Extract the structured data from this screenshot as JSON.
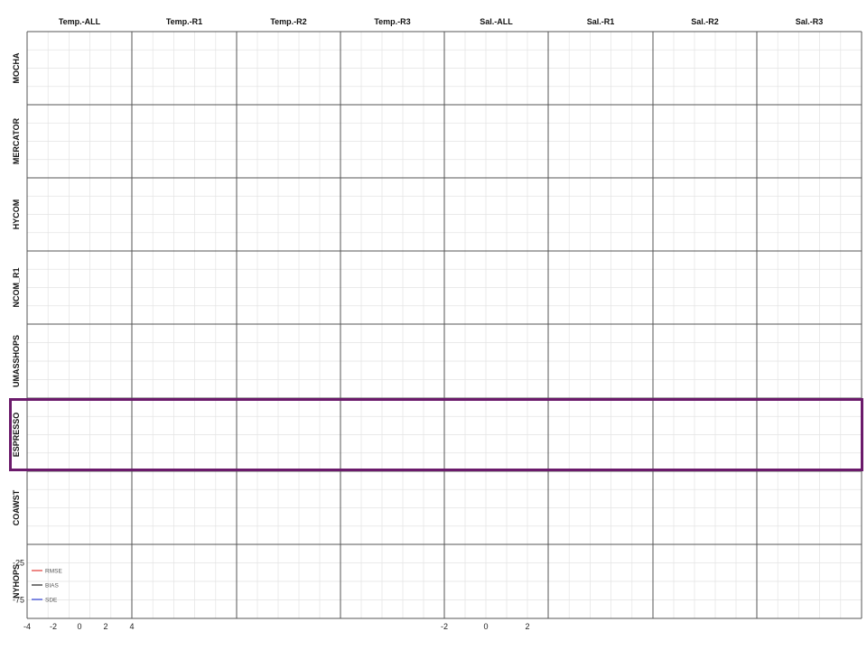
{
  "chart_data": {
    "type": "line",
    "columns": [
      "Temp.-ALL",
      "Temp.-R1",
      "Temp.-R2",
      "Temp.-R3",
      "Sal.-ALL",
      "Sal.-R1",
      "Sal.-R2",
      "Sal.-R3"
    ],
    "rows": [
      "MOCHA",
      "MERCATOR",
      "HYCOM",
      "NCOM_R1",
      "UMASSHOPS",
      "ESPRESSO",
      "COAWST",
      "NYHOPS"
    ],
    "highlighted_row": "ESPRESSO",
    "legend": [
      {
        "name": "RMSE",
        "color": "#e23a36"
      },
      {
        "name": "BIAS",
        "color": "#222222"
      },
      {
        "name": "SDE",
        "color": "#2f3fd6"
      }
    ],
    "legend_position": "lower-left",
    "x_ticks_temp": [
      "-4",
      "-2",
      "0",
      "2",
      "4"
    ],
    "x_ticks_sal": [
      "-2",
      "0",
      "2"
    ],
    "y_ticks": [
      "-25",
      "-75"
    ],
    "grid": true,
    "panels": []
  }
}
